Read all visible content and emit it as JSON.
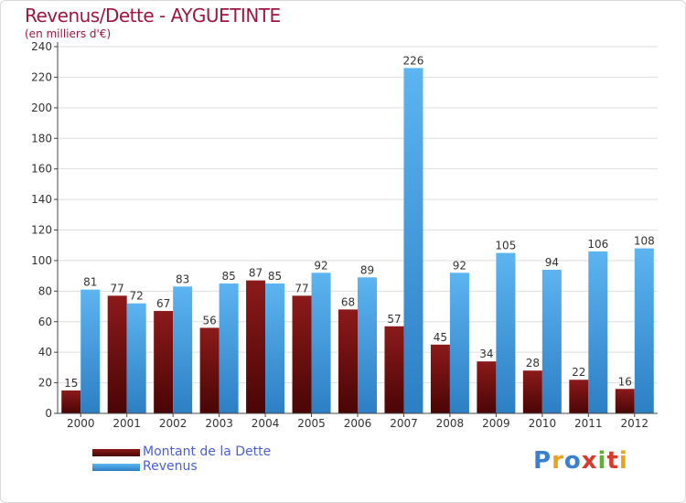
{
  "chart_data": {
    "type": "bar",
    "title": "Revenus/Dette - AYGUETINTE",
    "subtitle": "(en milliers d'€)",
    "xlabel": "",
    "ylabel": "",
    "categories": [
      "2000",
      "2001",
      "2002",
      "2003",
      "2004",
      "2005",
      "2006",
      "2007",
      "2008",
      "2009",
      "2010",
      "2011",
      "2012"
    ],
    "ylim": [
      0,
      240
    ],
    "yticks": [
      0,
      20,
      40,
      60,
      80,
      100,
      120,
      140,
      160,
      180,
      200,
      220,
      240
    ],
    "grid": true,
    "legend_position": "bottom-left",
    "series": [
      {
        "name": "Montant de la Dette",
        "color": "#7a1010",
        "values": [
          15,
          77,
          67,
          56,
          87,
          77,
          68,
          57,
          45,
          34,
          28,
          22,
          16
        ]
      },
      {
        "name": "Revenus",
        "color": "#4aa3e6",
        "values": [
          81,
          72,
          83,
          85,
          85,
          92,
          89,
          226,
          92,
          105,
          94,
          106,
          108
        ]
      }
    ]
  },
  "brand": {
    "letters": [
      "P",
      "r",
      "o",
      "x",
      "i",
      "t",
      "i"
    ],
    "colors": [
      "#3a7fd0",
      "#e9a21b",
      "#3a7fd0",
      "#d93a2b",
      "#5fb030",
      "#d93a2b",
      "#e9a21b"
    ]
  }
}
